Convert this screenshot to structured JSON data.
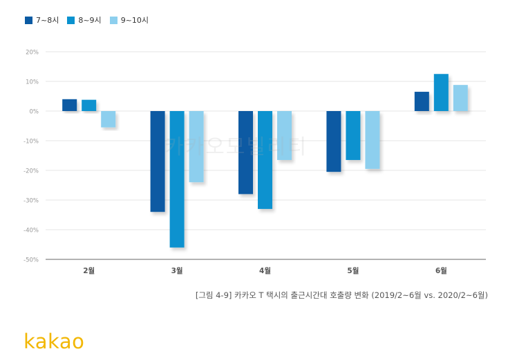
{
  "chart_data": {
    "type": "bar",
    "categories": [
      "2월",
      "3월",
      "4월",
      "5월",
      "6월"
    ],
    "series": [
      {
        "name": "7~8시",
        "color": "#0a5aa3",
        "values": [
          4,
          -34,
          -28,
          -20.5,
          6.5
        ]
      },
      {
        "name": "8~9시",
        "color": "#0a92cf",
        "values": [
          3.8,
          -46,
          -33,
          -16.5,
          12.5
        ]
      },
      {
        "name": "9~10시",
        "color": "#8dcfee",
        "values": [
          -5.5,
          -24,
          -16.5,
          -19.5,
          8.8
        ]
      }
    ],
    "yticks": [
      "20%",
      "10%",
      "0%",
      "-10%",
      "-20%",
      "-30%",
      "-40%",
      "-50%"
    ],
    "ylim": [
      -50,
      20
    ],
    "grid": true,
    "legend_position": "top-left"
  },
  "watermark": "카카오모빌리티",
  "caption": "[그림 4-9] 카카오 T 택시의 출근시간대 호출량 변화 (2019/2~6월 vs. 2020/2~6월)",
  "brand": "kakao"
}
